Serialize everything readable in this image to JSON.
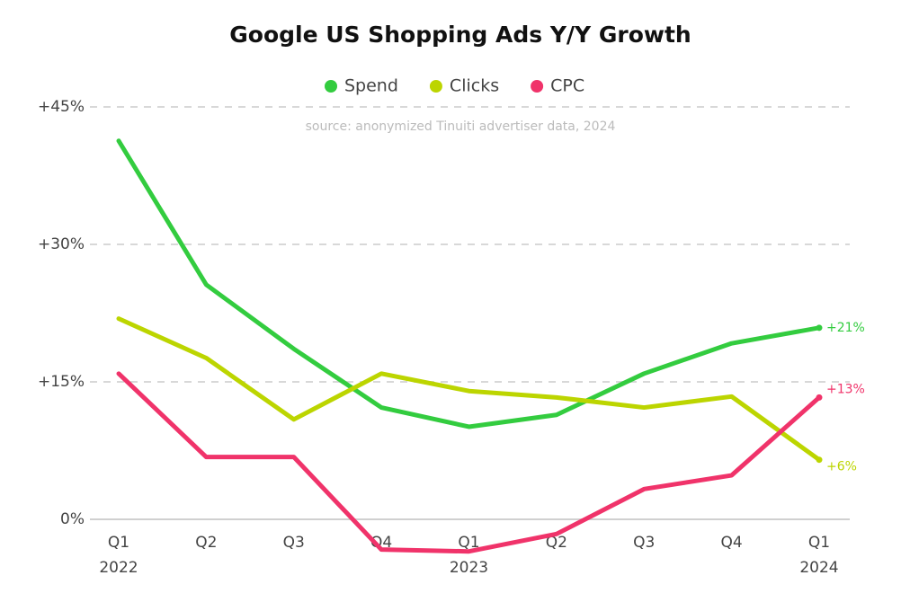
{
  "chart_data": {
    "type": "line",
    "title": "Google US Shopping Ads Y/Y Growth",
    "subtitle": "source: anonymized Tinuiti advertiser data, 2024",
    "categories": [
      "Q1",
      "Q2",
      "Q3",
      "Q4",
      "Q1",
      "Q2",
      "Q3",
      "Q4",
      "Q1"
    ],
    "category_years": [
      "2022",
      null,
      null,
      null,
      "2023",
      null,
      null,
      null,
      "2024"
    ],
    "series": [
      {
        "name": "Spend",
        "color": "#33cc3f",
        "values": [
          41.3,
          25.6,
          18.6,
          12.2,
          10.1,
          11.4,
          15.9,
          19.2,
          20.9
        ],
        "value_labels": [
          null,
          null,
          null,
          null,
          null,
          null,
          null,
          null,
          "+21%"
        ]
      },
      {
        "name": "Clicks",
        "color": "#bcd500",
        "values": [
          21.9,
          17.6,
          10.9,
          15.9,
          14.0,
          13.3,
          12.2,
          13.4,
          6.5
        ],
        "value_labels": [
          null,
          null,
          null,
          null,
          null,
          null,
          null,
          null,
          "+6%"
        ]
      },
      {
        "name": "CPC",
        "color": "#f0336a",
        "values": [
          15.9,
          6.8,
          6.8,
          -3.3,
          -3.5,
          -1.6,
          3.3,
          4.8,
          13.3
        ],
        "value_labels": [
          null,
          null,
          null,
          null,
          null,
          null,
          null,
          null,
          "+13%"
        ]
      }
    ],
    "ylim": [
      -5,
      45
    ],
    "yticks": [
      {
        "value": 0,
        "label": "0%"
      },
      {
        "value": 15,
        "label": "+15%"
      },
      {
        "value": 30,
        "label": "+30%"
      },
      {
        "value": 45,
        "label": "+45%"
      }
    ],
    "grid": true
  }
}
